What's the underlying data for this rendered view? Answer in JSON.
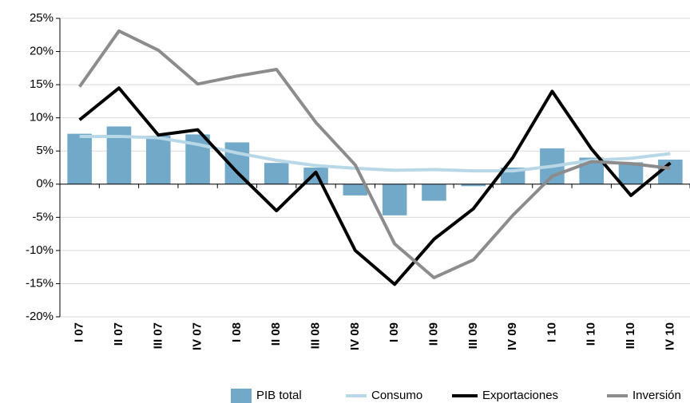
{
  "chart_data": {
    "type": "bar",
    "categories": [
      "I 07",
      "II 07",
      "III 07",
      "IV 07",
      "I 08",
      "II 08",
      "III 08",
      "IV 08",
      "I 09",
      "II 09",
      "III 09",
      "IV 09",
      "I 10",
      "II 10",
      "III 10",
      "IV 10"
    ],
    "series": [
      {
        "name": "PIB total",
        "type": "bar",
        "color": "#72a9c9",
        "values": [
          7.6,
          8.7,
          7.3,
          7.5,
          6.3,
          3.2,
          2.5,
          -1.7,
          -4.7,
          -2.5,
          -0.3,
          2.5,
          5.4,
          4.0,
          3.3,
          3.7
        ]
      },
      {
        "name": "Consumo",
        "type": "line",
        "color": "#b9d8e7",
        "values": [
          7.2,
          7.2,
          7.0,
          6.0,
          4.7,
          3.6,
          2.8,
          2.4,
          2.1,
          2.2,
          2.0,
          2.0,
          2.7,
          3.6,
          3.9,
          4.6
        ]
      },
      {
        "name": "Exportaciones",
        "type": "line",
        "color": "#000000",
        "values": [
          9.7,
          14.5,
          7.4,
          8.2,
          1.8,
          -4.0,
          1.8,
          -10.0,
          -15.1,
          -8.3,
          -3.7,
          4.0,
          14.0,
          5.3,
          -1.7,
          3.2
        ]
      },
      {
        "name": "Inversión",
        "type": "line",
        "color": "#8c8c8c",
        "values": [
          14.7,
          23.1,
          20.2,
          15.1,
          16.3,
          17.3,
          9.3,
          2.9,
          -9.0,
          -14.1,
          -11.4,
          -4.7,
          1.2,
          3.4,
          3.1,
          2.4
        ]
      }
    ],
    "ylim": [
      -20,
      25
    ],
    "yticks": [
      {
        "value": -20,
        "label": "-20%"
      },
      {
        "value": -15,
        "label": "-15%"
      },
      {
        "value": -10,
        "label": "-10%"
      },
      {
        "value": -5,
        "label": "-5%"
      },
      {
        "value": 0,
        "label": "0%"
      },
      {
        "value": 5,
        "label": "5%"
      },
      {
        "value": 10,
        "label": "10%"
      },
      {
        "value": 15,
        "label": "15%"
      },
      {
        "value": 20,
        "label": "20%"
      },
      {
        "value": 25,
        "label": "25%"
      }
    ],
    "grid": true,
    "legend": "bottom"
  }
}
